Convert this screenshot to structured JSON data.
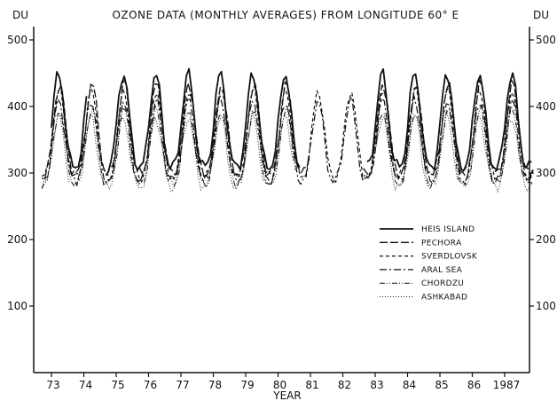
{
  "chart_data": {
    "type": "line",
    "title": "OZONE DATA (MONTHLY AVERAGES) FROM LONGITUDE 60° E",
    "xlabel": "YEAR",
    "ylabel_left": "DU",
    "ylabel_right": "DU",
    "ylim": [
      0,
      520
    ],
    "xlim": [
      1972.5,
      1988.2
    ],
    "yticks": [
      100,
      200,
      300,
      400,
      500
    ],
    "ytick_labels_left": [
      "100",
      "200",
      "300",
      "400",
      "500"
    ],
    "ytick_labels_right": [
      "100",
      "200",
      "300",
      "400",
      "500"
    ],
    "xtick_labels": [
      "73",
      "74",
      "75",
      "76",
      "77",
      "78",
      "79",
      "80",
      "81",
      "82",
      "83",
      "84",
      "85",
      "86",
      "1987"
    ],
    "grid": false,
    "legend_position": "right-center",
    "series": [
      {
        "name": "HEIS ISLAND",
        "dash": "",
        "width": 1.8,
        "minimum": 310,
        "maximum": 450,
        "peak_phase": 0.22,
        "start": 1973.0,
        "end": 1987.9,
        "missing": [
          [
            1974.1,
            1974.7
          ],
          [
            1980.7,
            1982.7
          ]
        ]
      },
      {
        "name": "PECHORA",
        "dash": "9,3",
        "width": 1.3,
        "minimum": 300,
        "maximum": 435,
        "peak_phase": 0.25,
        "start": 1972.8,
        "end": 1987.9,
        "missing": [
          [
            1981.0,
            1982.6
          ]
        ]
      },
      {
        "name": "SVERDLOVSK",
        "dash": "4,3",
        "width": 1.2,
        "minimum": 295,
        "maximum": 425,
        "peak_phase": 0.24,
        "start": 1972.7,
        "end": 1987.9,
        "missing": []
      },
      {
        "name": "ARAL SEA",
        "dash": "8,3,2,3",
        "width": 1.2,
        "minimum": 290,
        "maximum": 410,
        "peak_phase": 0.23,
        "start": 1972.7,
        "end": 1987.9,
        "missing": []
      },
      {
        "name": "CHORDZU",
        "dash": "6,2,1,2,1,2",
        "width": 1.0,
        "minimum": 285,
        "maximum": 395,
        "peak_phase": 0.24,
        "start": 1972.7,
        "end": 1987.9,
        "missing": [
          [
            1980.6,
            1983.0
          ]
        ]
      },
      {
        "name": "ASHKABAD",
        "dash": "1,2",
        "width": 1.0,
        "minimum": 280,
        "maximum": 385,
        "peak_phase": 0.22,
        "start": 1972.7,
        "end": 1987.9,
        "missing": [
          [
            1980.5,
            1983.0
          ]
        ]
      }
    ]
  }
}
